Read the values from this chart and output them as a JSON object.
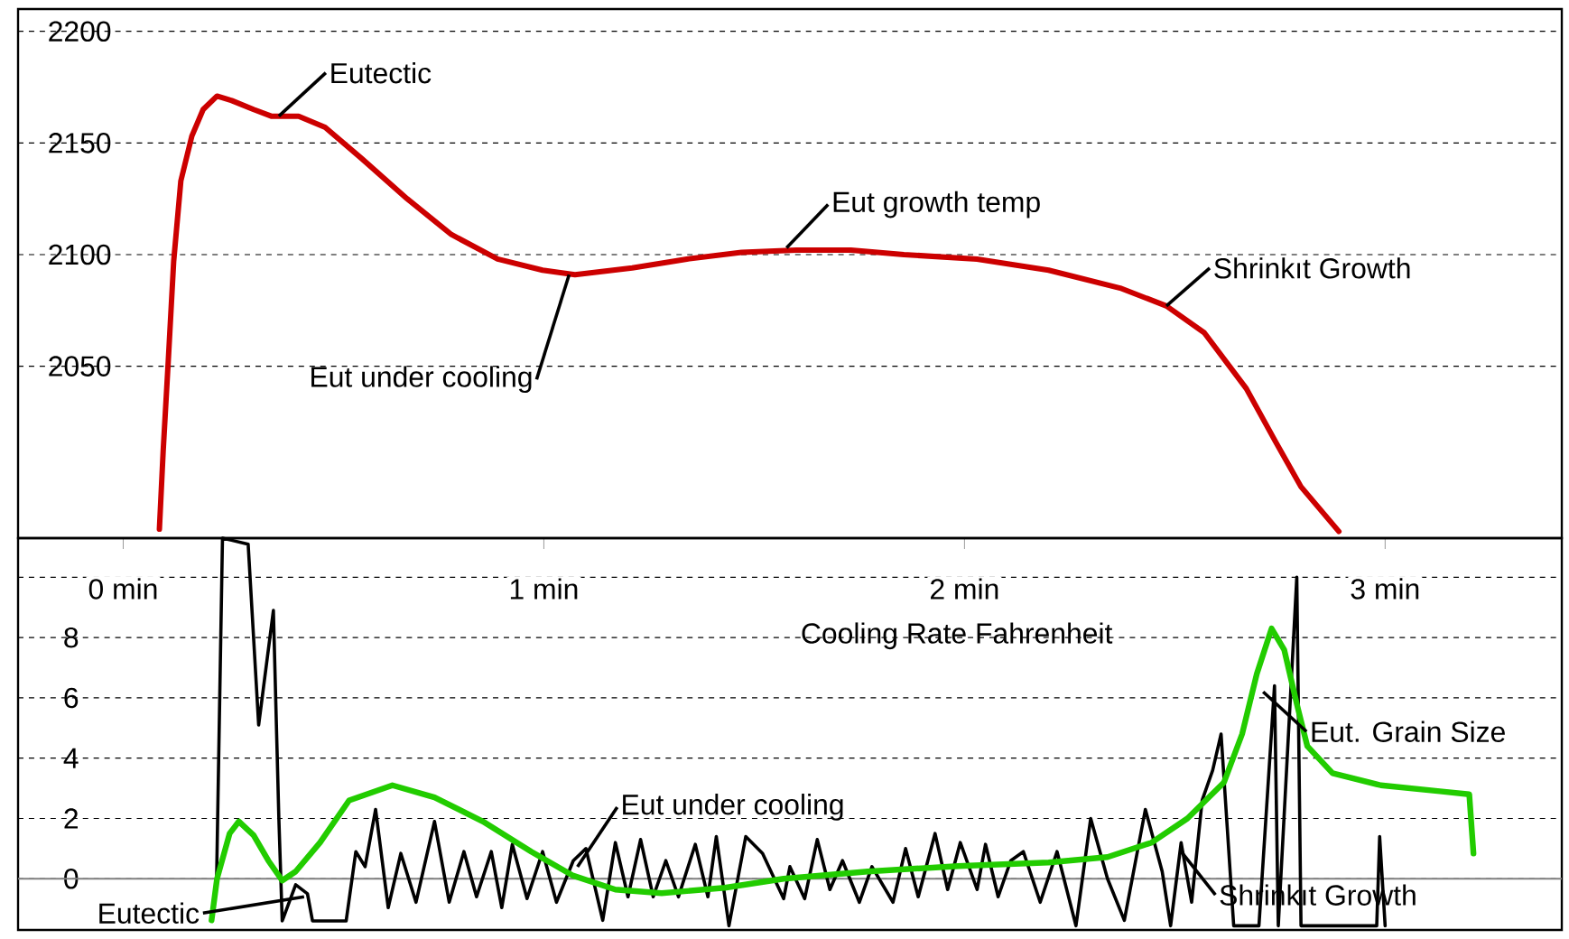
{
  "chart_data": [
    {
      "type": "line",
      "xlim": [
        -0.25,
        3.42
      ],
      "ylim": [
        1973,
        2210
      ],
      "yticks": [
        2050,
        2100,
        2150,
        2200
      ],
      "grid": "y",
      "tick_labels": "y",
      "series": [
        {
          "color": "#cc0000",
          "x": [
            0.086,
            0.095,
            0.107,
            0.12,
            0.137,
            0.163,
            0.19,
            0.223,
            0.258,
            0.31,
            0.352,
            0.417,
            0.48,
            0.567,
            0.675,
            0.78,
            0.89,
            0.997,
            1.074,
            1.21,
            1.34,
            1.47,
            1.6,
            1.73,
            1.856,
            2.03,
            2.2,
            2.37,
            2.48,
            2.57,
            2.67,
            2.74,
            2.8,
            2.89
          ],
          "values": [
            1977,
            2012,
            2052,
            2097,
            2133,
            2153,
            2165,
            2171,
            2169,
            2165,
            2162,
            2162,
            2157,
            2143,
            2125,
            2109,
            2098,
            2093,
            2091,
            2094,
            2098,
            2101,
            2102,
            2102,
            2100,
            2098,
            2093,
            2085,
            2077,
            2065,
            2040,
            2016,
            1996,
            1976
          ]
        }
      ],
      "annotations": [
        {
          "text": "Eutectic",
          "x": 0.37,
          "y": 2162
        },
        {
          "text": "Eut under cooling",
          "x": 1.06,
          "y": 2091
        },
        {
          "text": "Eut growth temp",
          "x": 1.577,
          "y": 2103
        },
        {
          "text": "Shrinkıt Growth",
          "x": 2.48,
          "y": 2077
        }
      ]
    },
    {
      "type": "line",
      "title": "Cooling Rate Fahrenheit",
      "xlim": [
        -0.25,
        3.42
      ],
      "ylim": [
        -1.7,
        11.3
      ],
      "xticks": [
        {
          "value": 0,
          "label": "0 min"
        },
        {
          "value": 1,
          "label": "1 min"
        },
        {
          "value": 2,
          "label": "2 min"
        },
        {
          "value": 3,
          "label": "3 min"
        }
      ],
      "yticks": [
        0,
        2,
        4,
        6,
        8,
        {
          "value": 10,
          "label": null
        }
      ],
      "grid": "y",
      "ref_lines": [
        {
          "axis": "y",
          "value": 0,
          "color": "#808080"
        }
      ],
      "series": [
        {
          "color": "#000000",
          "x": [
            0.222,
            0.236,
            0.297,
            0.322,
            0.357,
            0.37,
            0.378,
            0.41,
            0.438,
            0.45,
            0.53,
            0.553,
            0.575,
            0.6,
            0.63,
            0.66,
            0.696,
            0.74,
            0.775,
            0.81,
            0.84,
            0.875,
            0.9,
            0.925,
            0.96,
            0.997,
            1.03,
            1.07,
            1.1,
            1.14,
            1.17,
            1.2,
            1.23,
            1.26,
            1.29,
            1.32,
            1.36,
            1.39,
            1.41,
            1.44,
            1.48,
            1.52,
            1.57,
            1.585,
            1.62,
            1.65,
            1.68,
            1.71,
            1.75,
            1.78,
            1.83,
            1.86,
            1.89,
            1.93,
            1.96,
            1.99,
            2.03,
            2.05,
            2.08,
            2.11,
            2.14,
            2.18,
            2.22,
            2.265,
            2.3,
            2.34,
            2.38,
            2.43,
            2.47,
            2.49,
            2.515,
            2.54,
            2.565,
            2.59,
            2.61,
            2.64,
            2.7,
            2.737,
            2.746,
            2.79,
            2.8,
            2.98,
            2.987,
            3.0
          ],
          "values": [
            0,
            11.3,
            11.1,
            5.1,
            8.9,
            2.0,
            -1.4,
            -0.2,
            -0.5,
            -1.4,
            -1.4,
            0.9,
            0.4,
            2.3,
            -0.96,
            0.84,
            -0.78,
            1.9,
            -0.78,
            0.9,
            -0.6,
            0.9,
            -0.96,
            1.14,
            -0.66,
            0.9,
            -0.78,
            0.6,
            1.0,
            -1.38,
            1.2,
            -0.6,
            1.3,
            -0.6,
            0.6,
            -0.6,
            1.14,
            -0.6,
            1.4,
            -1.56,
            1.4,
            0.84,
            -0.66,
            0.4,
            -0.66,
            1.3,
            -0.36,
            0.6,
            -0.78,
            0.4,
            -0.78,
            1.0,
            -0.6,
            1.5,
            -0.36,
            1.2,
            -0.36,
            1.14,
            -0.6,
            0.6,
            0.9,
            -0.78,
            0.9,
            -1.56,
            2.0,
            0,
            -1.38,
            2.3,
            0.24,
            -1.56,
            1.2,
            -0.78,
            2.6,
            3.6,
            4.8,
            -1.56,
            -1.56,
            6.4,
            -1.56,
            10,
            -1.56,
            -1.56,
            1.4,
            -1.56
          ]
        },
        {
          "color": "#22cc00",
          "x": [
            0.21,
            0.223,
            0.253,
            0.275,
            0.31,
            0.345,
            0.378,
            0.41,
            0.468,
            0.537,
            0.64,
            0.74,
            0.855,
            0.97,
            1.07,
            1.17,
            1.28,
            1.43,
            1.57,
            1.77,
            1.985,
            2.2,
            2.34,
            2.445,
            2.53,
            2.617,
            2.66,
            2.695,
            2.73,
            2.76,
            2.79,
            2.815,
            2.875,
            2.99,
            3.13,
            3.2,
            3.21
          ],
          "values": [
            -1.38,
            0,
            1.5,
            1.9,
            1.44,
            0.6,
            -0.06,
            0.24,
            1.2,
            2.6,
            3.1,
            2.7,
            1.9,
            0.9,
            0.1,
            -0.36,
            -0.48,
            -0.3,
            0,
            0.24,
            0.42,
            0.54,
            0.72,
            1.2,
            2.0,
            3.2,
            4.8,
            6.8,
            8.3,
            7.6,
            5.8,
            4.4,
            3.5,
            3.1,
            2.9,
            2.8,
            0.84
          ]
        }
      ],
      "annotations": [
        {
          "text": "Eut under cooling",
          "x": 1.08,
          "y": 0.4
        },
        {
          "text": "Eut. Grain Size",
          "x": 2.71,
          "y": 6.2
        },
        {
          "text": "Shrinkıt Growth",
          "x": 2.515,
          "y": 0.9
        },
        {
          "text": "Eutectic",
          "x": 0.43,
          "y": -0.6
        }
      ]
    }
  ]
}
